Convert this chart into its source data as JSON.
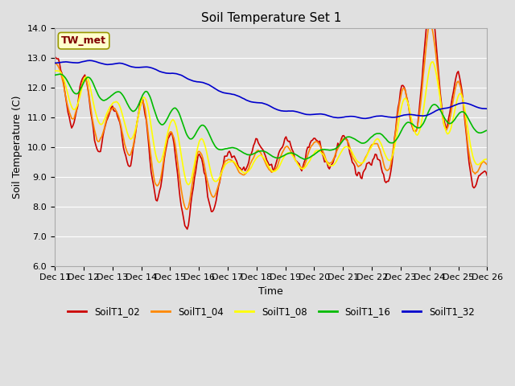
{
  "title": "Soil Temperature Set 1",
  "xlabel": "Time",
  "ylabel": "Soil Temperature (C)",
  "ylim": [
    6.0,
    14.0
  ],
  "yticks": [
    6.0,
    7.0,
    8.0,
    9.0,
    10.0,
    11.0,
    12.0,
    13.0,
    14.0
  ],
  "xlim_days": 15,
  "xtick_labels": [
    "Dec 11",
    "Dec 12",
    "Dec 13",
    "Dec 14",
    "Dec 15",
    "Dec 16",
    "Dec 17",
    "Dec 18",
    "Dec 19",
    "Dec 20",
    "Dec 21",
    "Dec 22",
    "Dec 23",
    "Dec 24",
    "Dec 25",
    "Dec 26"
  ],
  "colors": {
    "SoilT1_02": "#cc0000",
    "SoilT1_04": "#ff8800",
    "SoilT1_08": "#ffff00",
    "SoilT1_16": "#00bb00",
    "SoilT1_32": "#0000cc"
  },
  "annotation_label": "TW_met",
  "annotation_color": "#800000",
  "annotation_bg": "#ffffcc",
  "background_color": "#e0e0e0",
  "grid_color": "#ffffff",
  "title_fontsize": 11,
  "axis_fontsize": 9,
  "tick_fontsize": 8
}
